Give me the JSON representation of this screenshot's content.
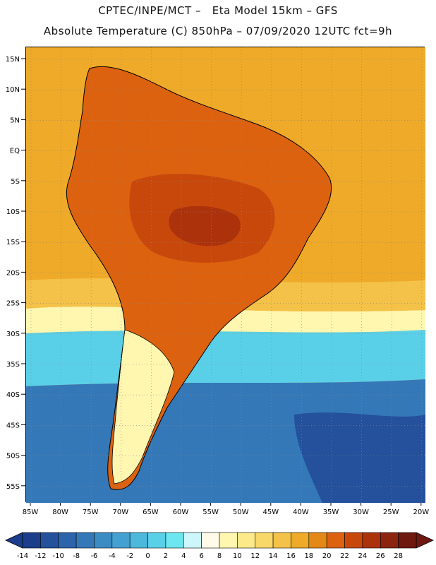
{
  "header": {
    "line1": "CPTEC/INPE/MCT –   Eta Model 15km – GFS",
    "line2": "Absolute Temperature (C) 850hPa – 07/09/2020 12UTC fct=9h"
  },
  "axes": {
    "lat_labels": [
      "15N",
      "10N",
      "5N",
      "EQ",
      "5S",
      "10S",
      "15S",
      "20S",
      "25S",
      "30S",
      "35S",
      "40S",
      "45S",
      "50S",
      "55S"
    ],
    "lon_labels": [
      "85W",
      "80W",
      "75W",
      "70W",
      "65W",
      "60W",
      "55W",
      "50W",
      "45W",
      "40W",
      "35W",
      "30W",
      "25W",
      "20W"
    ]
  },
  "colorbar": {
    "labels": [
      "-14",
      "-12",
      "-10",
      "-8",
      "-6",
      "-4",
      "-2",
      "0",
      "2",
      "4",
      "6",
      "8",
      "10",
      "12",
      "14",
      "16",
      "18",
      "20",
      "22",
      "24",
      "26",
      "28"
    ],
    "colors": [
      "#1c3c8c",
      "#24509c",
      "#2c64ac",
      "#3478b8",
      "#3c8cc4",
      "#44a0d0",
      "#4cb8dc",
      "#5ad0e8",
      "#6ee6f0",
      "#cdf6fa",
      "#fffbe8",
      "#fff6b0",
      "#fcea8a",
      "#f8d868",
      "#f4c248",
      "#eeaa28",
      "#e48818",
      "#dc6210",
      "#c8480c",
      "#ac320c",
      "#8c2410",
      "#6e1810"
    ],
    "under_color": "#1c3c8c",
    "over_color": "#6e1810"
  },
  "map": {
    "colors": {
      "ocean_warm": "#eeaa28",
      "ocean_mid": "#f4c248",
      "ocean_pale": "#fff6b0",
      "ocean_cool": "#5ad0e8",
      "ocean_cold": "#3478b8",
      "ocean_deep": "#24509c",
      "land_hot": "#dc6210",
      "land_hotter": "#c8480c",
      "land_peak": "#ac320c",
      "coast": "#000000"
    }
  }
}
